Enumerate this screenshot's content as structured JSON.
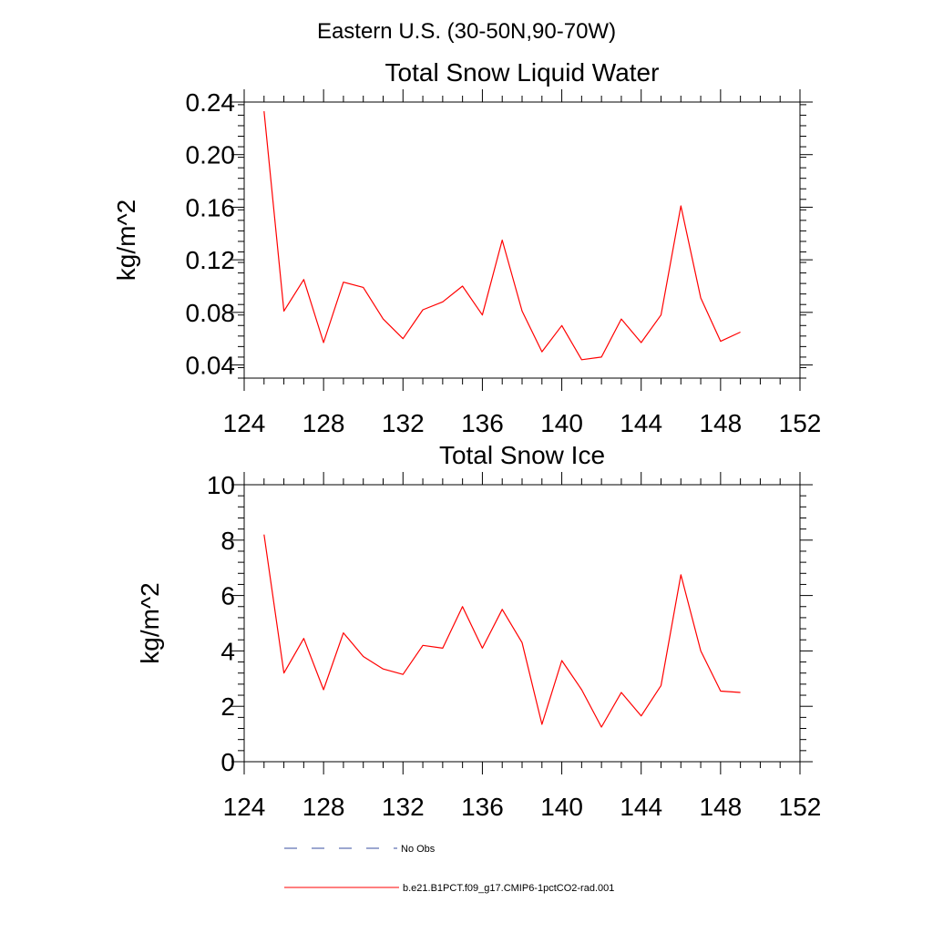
{
  "page_title": "Eastern U.S. (30-50N,90-70W)",
  "legend": {
    "entries": [
      {
        "label": "No Obs",
        "color": "#3a4fa0",
        "style": "dashed"
      },
      {
        "label": "b.e21.B1PCT.f09_g17.CMIP6-1pctCO2-rad.001",
        "color": "#ff0000",
        "style": "solid"
      }
    ]
  },
  "chart_data": [
    {
      "type": "line",
      "title": "Total Snow Liquid Water",
      "xlabel": "",
      "ylabel": "kg/m^2",
      "xlim": [
        124,
        152
      ],
      "ylim": [
        0.03,
        0.24
      ],
      "xticks": [
        124,
        128,
        132,
        136,
        140,
        144,
        148,
        152
      ],
      "yticks": [
        0.04,
        0.08,
        0.12,
        0.16,
        0.2,
        0.24
      ],
      "ytick_labels": [
        "0.04",
        "0.08",
        "0.12",
        "0.16",
        "0.20",
        "0.24"
      ],
      "x_minor_step": 1,
      "y_minor_step": 0.008,
      "series": [
        {
          "color": "#ff0000",
          "x": [
            125,
            126,
            127,
            128,
            129,
            130,
            131,
            132,
            133,
            134,
            135,
            136,
            137,
            138,
            139,
            140,
            141,
            142,
            143,
            144,
            145,
            146,
            147,
            148,
            149
          ],
          "y": [
            0.233,
            0.081,
            0.105,
            0.057,
            0.103,
            0.099,
            0.075,
            0.06,
            0.082,
            0.088,
            0.1,
            0.078,
            0.135,
            0.081,
            0.05,
            0.07,
            0.044,
            0.046,
            0.075,
            0.057,
            0.078,
            0.161,
            0.091,
            0.058,
            0.065
          ]
        }
      ]
    },
    {
      "type": "line",
      "title": "Total Snow Ice",
      "xlabel": "",
      "ylabel": "kg/m^2",
      "xlim": [
        124,
        152
      ],
      "ylim": [
        0,
        10
      ],
      "xticks": [
        124,
        128,
        132,
        136,
        140,
        144,
        148,
        152
      ],
      "yticks": [
        0,
        2,
        4,
        6,
        8,
        10
      ],
      "ytick_labels": [
        "0",
        "2",
        "4",
        "6",
        "8",
        "10"
      ],
      "x_minor_step": 1,
      "y_minor_step": 0.4,
      "series": [
        {
          "color": "#ff0000",
          "x": [
            125,
            126,
            127,
            128,
            129,
            130,
            131,
            132,
            133,
            134,
            135,
            136,
            137,
            138,
            139,
            140,
            141,
            142,
            143,
            144,
            145,
            146,
            147,
            148,
            149
          ],
          "y": [
            8.2,
            3.2,
            4.45,
            2.6,
            4.65,
            3.8,
            3.35,
            3.15,
            4.2,
            4.1,
            5.6,
            4.1,
            5.5,
            4.3,
            1.35,
            3.65,
            2.6,
            1.25,
            2.5,
            1.65,
            2.75,
            6.75,
            4.0,
            2.55,
            2.5
          ]
        }
      ]
    }
  ]
}
